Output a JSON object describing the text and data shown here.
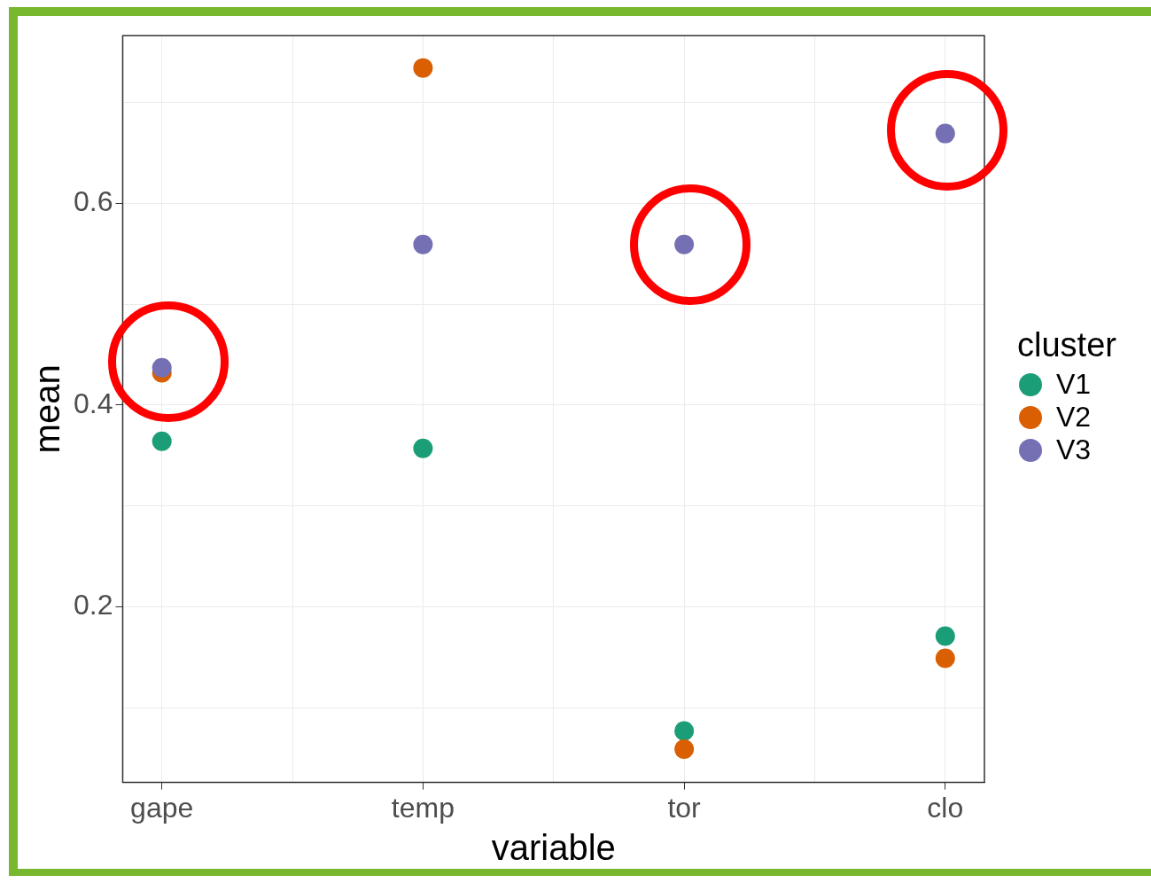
{
  "chart_data": {
    "type": "scatter",
    "xlabel": "variable",
    "ylabel": "mean",
    "legend_title": "cluster",
    "legend": "right",
    "grid": true,
    "marker": "circle",
    "categories": [
      "gape",
      "temp",
      "tor",
      "clo"
    ],
    "ylim": [
      0.026,
      0.766
    ],
    "yticks": [
      {
        "value": 0.1,
        "label": null
      },
      0.2,
      {
        "value": 0.3,
        "label": null
      },
      0.4,
      {
        "value": 0.5,
        "label": null
      },
      0.6,
      {
        "value": 0.7,
        "label": null
      }
    ],
    "series": [
      {
        "name": "V1",
        "color": "#1b9e77",
        "values": [
          0.364,
          0.357,
          0.077,
          0.171
        ]
      },
      {
        "name": "V2",
        "color": "#d95f02",
        "values": [
          0.432,
          0.734,
          0.059,
          0.149
        ]
      },
      {
        "name": "V3",
        "color": "#7570b3",
        "values": [
          0.437,
          0.559,
          0.559,
          0.669
        ]
      }
    ]
  }
}
